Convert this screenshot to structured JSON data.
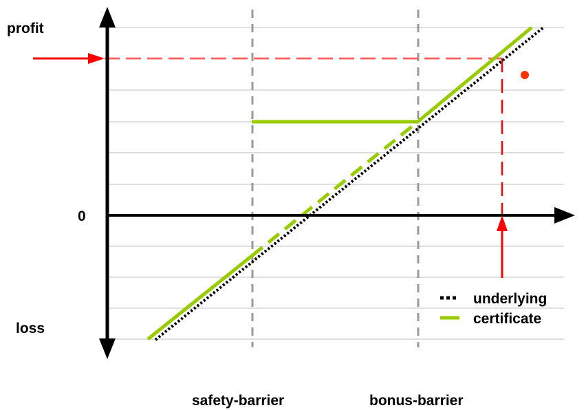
{
  "labels": {
    "profit": "profit",
    "loss": "loss",
    "zero": "0",
    "safety_barrier": "safety-barrier",
    "bonus_barrier": "bonus-barrier"
  },
  "legend": {
    "underlying": "underlying",
    "certificate": "certificate"
  },
  "colors": {
    "axis": "#000000",
    "gridline": "#bfbfbf",
    "barrier": "#999999",
    "certificate": "#99cc00",
    "underlying": "#000000",
    "highlight": "#ff0000",
    "dot": "#ff3300"
  }
}
